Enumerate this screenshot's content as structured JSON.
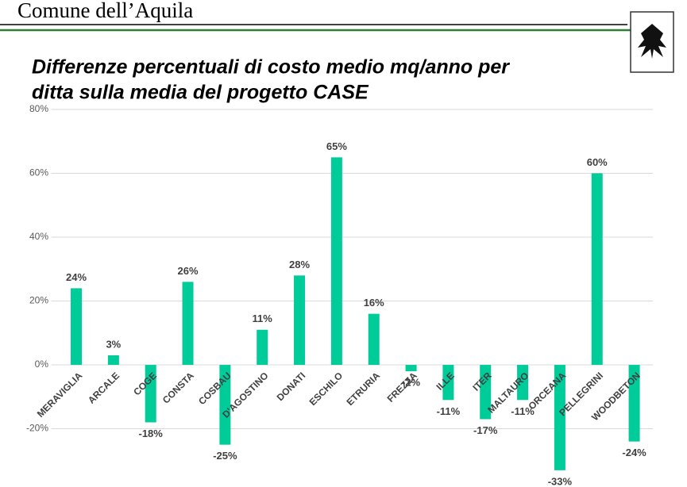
{
  "header": {
    "text": "Comune dell’Aquila"
  },
  "chart_data": {
    "type": "bar",
    "title": [
      "Differenze percentuali di costo medio mq/anno per",
      "ditta sulla media del progetto CASE"
    ],
    "categories": [
      "MERAVIGLIA",
      "ARCALE",
      "COGE",
      "CONSTA",
      "COSBAU",
      "D'AGOSTINO",
      "DONATI",
      "ESCHILO",
      "ETRURIA",
      "FREZZA",
      "ILLE",
      "ITER",
      "MALTAURO",
      "ORCEANA",
      "PELLEGRINI",
      "WOODBETON"
    ],
    "values": [
      24,
      3,
      -18,
      26,
      -25,
      11,
      28,
      65,
      16,
      -2,
      -11,
      -17,
      -11,
      -33,
      60,
      -24
    ],
    "value_labels": [
      "24%",
      "3%",
      "-18%",
      "26%",
      "-25%",
      "11%",
      "28%",
      "65%",
      "16%",
      "-2%",
      "-11%",
      "-17%",
      "-11%",
      "-33%",
      "60%",
      "-24%"
    ],
    "color": "#00cc99",
    "ylim": [
      -38,
      80
    ],
    "yticks": [
      {
        "value": -20,
        "label": "-20%"
      },
      {
        "value": 0,
        "label": "0%"
      },
      {
        "value": 20,
        "label": "20%"
      },
      {
        "value": 40,
        "label": "40%"
      },
      {
        "value": 60,
        "label": "60%"
      },
      {
        "value": 80,
        "label": "80%"
      }
    ],
    "grid": true
  }
}
